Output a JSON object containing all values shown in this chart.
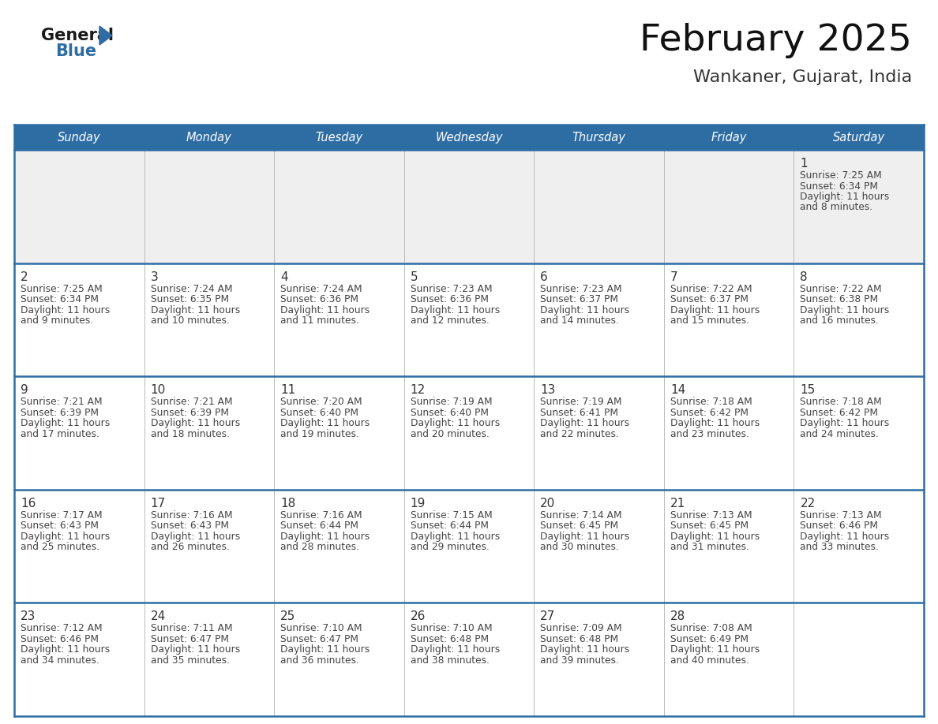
{
  "title": "February 2025",
  "subtitle": "Wankaner, Gujarat, India",
  "header_bg": "#2E6DA4",
  "header_text": "#FFFFFF",
  "day_names": [
    "Sunday",
    "Monday",
    "Tuesday",
    "Wednesday",
    "Thursday",
    "Friday",
    "Saturday"
  ],
  "cell_bg_week0": "#EFEFEF",
  "cell_bg_normal": "#FFFFFF",
  "day_num_color": "#333333",
  "text_color": "#444444",
  "line_color": "#2E6DA4",
  "logo_general_color": "#1a1a1a",
  "logo_blue_color": "#2E6DA4",
  "weeks": [
    [
      {
        "day": null,
        "sunrise": null,
        "sunset": null,
        "daylight": null
      },
      {
        "day": null,
        "sunrise": null,
        "sunset": null,
        "daylight": null
      },
      {
        "day": null,
        "sunrise": null,
        "sunset": null,
        "daylight": null
      },
      {
        "day": null,
        "sunrise": null,
        "sunset": null,
        "daylight": null
      },
      {
        "day": null,
        "sunrise": null,
        "sunset": null,
        "daylight": null
      },
      {
        "day": null,
        "sunrise": null,
        "sunset": null,
        "daylight": null
      },
      {
        "day": 1,
        "sunrise": "7:25 AM",
        "sunset": "6:34 PM",
        "daylight": "11 hours and 8 minutes."
      }
    ],
    [
      {
        "day": 2,
        "sunrise": "7:25 AM",
        "sunset": "6:34 PM",
        "daylight": "11 hours and 9 minutes."
      },
      {
        "day": 3,
        "sunrise": "7:24 AM",
        "sunset": "6:35 PM",
        "daylight": "11 hours and 10 minutes."
      },
      {
        "day": 4,
        "sunrise": "7:24 AM",
        "sunset": "6:36 PM",
        "daylight": "11 hours and 11 minutes."
      },
      {
        "day": 5,
        "sunrise": "7:23 AM",
        "sunset": "6:36 PM",
        "daylight": "11 hours and 12 minutes."
      },
      {
        "day": 6,
        "sunrise": "7:23 AM",
        "sunset": "6:37 PM",
        "daylight": "11 hours and 14 minutes."
      },
      {
        "day": 7,
        "sunrise": "7:22 AM",
        "sunset": "6:37 PM",
        "daylight": "11 hours and 15 minutes."
      },
      {
        "day": 8,
        "sunrise": "7:22 AM",
        "sunset": "6:38 PM",
        "daylight": "11 hours and 16 minutes."
      }
    ],
    [
      {
        "day": 9,
        "sunrise": "7:21 AM",
        "sunset": "6:39 PM",
        "daylight": "11 hours and 17 minutes."
      },
      {
        "day": 10,
        "sunrise": "7:21 AM",
        "sunset": "6:39 PM",
        "daylight": "11 hours and 18 minutes."
      },
      {
        "day": 11,
        "sunrise": "7:20 AM",
        "sunset": "6:40 PM",
        "daylight": "11 hours and 19 minutes."
      },
      {
        "day": 12,
        "sunrise": "7:19 AM",
        "sunset": "6:40 PM",
        "daylight": "11 hours and 20 minutes."
      },
      {
        "day": 13,
        "sunrise": "7:19 AM",
        "sunset": "6:41 PM",
        "daylight": "11 hours and 22 minutes."
      },
      {
        "day": 14,
        "sunrise": "7:18 AM",
        "sunset": "6:42 PM",
        "daylight": "11 hours and 23 minutes."
      },
      {
        "day": 15,
        "sunrise": "7:18 AM",
        "sunset": "6:42 PM",
        "daylight": "11 hours and 24 minutes."
      }
    ],
    [
      {
        "day": 16,
        "sunrise": "7:17 AM",
        "sunset": "6:43 PM",
        "daylight": "11 hours and 25 minutes."
      },
      {
        "day": 17,
        "sunrise": "7:16 AM",
        "sunset": "6:43 PM",
        "daylight": "11 hours and 26 minutes."
      },
      {
        "day": 18,
        "sunrise": "7:16 AM",
        "sunset": "6:44 PM",
        "daylight": "11 hours and 28 minutes."
      },
      {
        "day": 19,
        "sunrise": "7:15 AM",
        "sunset": "6:44 PM",
        "daylight": "11 hours and 29 minutes."
      },
      {
        "day": 20,
        "sunrise": "7:14 AM",
        "sunset": "6:45 PM",
        "daylight": "11 hours and 30 minutes."
      },
      {
        "day": 21,
        "sunrise": "7:13 AM",
        "sunset": "6:45 PM",
        "daylight": "11 hours and 31 minutes."
      },
      {
        "day": 22,
        "sunrise": "7:13 AM",
        "sunset": "6:46 PM",
        "daylight": "11 hours and 33 minutes."
      }
    ],
    [
      {
        "day": 23,
        "sunrise": "7:12 AM",
        "sunset": "6:46 PM",
        "daylight": "11 hours and 34 minutes."
      },
      {
        "day": 24,
        "sunrise": "7:11 AM",
        "sunset": "6:47 PM",
        "daylight": "11 hours and 35 minutes."
      },
      {
        "day": 25,
        "sunrise": "7:10 AM",
        "sunset": "6:47 PM",
        "daylight": "11 hours and 36 minutes."
      },
      {
        "day": 26,
        "sunrise": "7:10 AM",
        "sunset": "6:48 PM",
        "daylight": "11 hours and 38 minutes."
      },
      {
        "day": 27,
        "sunrise": "7:09 AM",
        "sunset": "6:48 PM",
        "daylight": "11 hours and 39 minutes."
      },
      {
        "day": 28,
        "sunrise": "7:08 AM",
        "sunset": "6:49 PM",
        "daylight": "11 hours and 40 minutes."
      },
      {
        "day": null,
        "sunrise": null,
        "sunset": null,
        "daylight": null
      }
    ]
  ]
}
